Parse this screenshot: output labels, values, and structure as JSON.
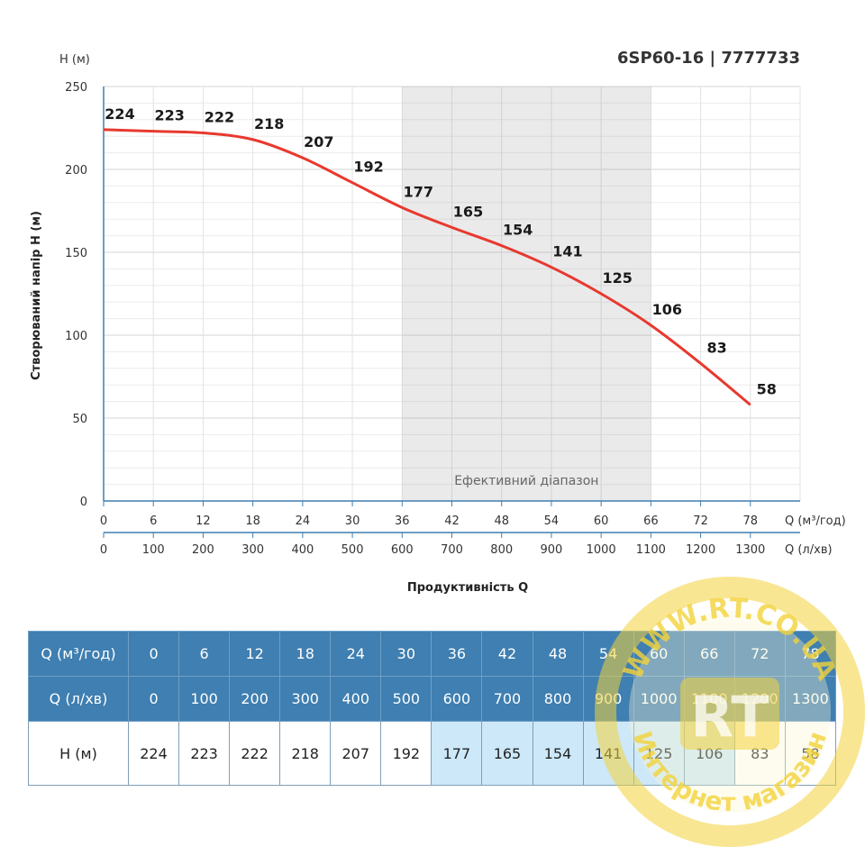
{
  "chart_data": {
    "type": "line",
    "title": "6SP60-16 | 7777733",
    "y_unit_label": "H (м)",
    "ylabel": "Створюваний напір H (м)",
    "xlabel": "Продуктивність Q",
    "x_unit_label": "Q (м³/год)",
    "x2_unit_label": "Q (л/хв)",
    "ylim": [
      0,
      250
    ],
    "yticks": [
      "0",
      "50",
      "100",
      "150",
      "200",
      "250"
    ],
    "x": [
      0,
      6,
      12,
      18,
      24,
      30,
      36,
      42,
      48,
      54,
      60,
      66,
      72,
      78
    ],
    "x_ticks": [
      "0",
      "6",
      "12",
      "18",
      "24",
      "30",
      "36",
      "42",
      "48",
      "54",
      "60",
      "66",
      "72",
      "78"
    ],
    "x2_ticks": [
      "0",
      "100",
      "200",
      "300",
      "400",
      "500",
      "600",
      "700",
      "800",
      "900",
      "1000",
      "1100",
      "1200",
      "1300"
    ],
    "xlim": [
      0,
      84
    ],
    "series": [
      {
        "values": [
          224,
          223,
          222,
          218,
          207,
          192,
          177,
          165,
          154,
          141,
          125,
          106,
          83,
          58
        ],
        "labels": [
          "224",
          "223",
          "222",
          "218",
          "207",
          "192",
          "177",
          "165",
          "154",
          "141",
          "125",
          "106",
          "83",
          "58"
        ],
        "color": "#e8392f"
      }
    ],
    "efficient_range": {
      "from": 36,
      "to": 66,
      "label": "Ефективний діапазон"
    },
    "grid": true
  },
  "table": {
    "rows": [
      {
        "header": "Q (м³/год)",
        "cells": [
          "0",
          "6",
          "12",
          "18",
          "24",
          "30",
          "36",
          "42",
          "48",
          "54",
          "60",
          "66",
          "72",
          "78"
        ]
      },
      {
        "header": "Q (л/хв)",
        "cells": [
          "0",
          "100",
          "200",
          "300",
          "400",
          "500",
          "600",
          "700",
          "800",
          "900",
          "1000",
          "1100",
          "1200",
          "1300"
        ]
      },
      {
        "header": "H (м)",
        "cells": [
          "224",
          "223",
          "222",
          "218",
          "207",
          "192",
          "177",
          "165",
          "154",
          "141",
          "125",
          "106",
          "83",
          "58"
        ]
      }
    ]
  },
  "watermark": {
    "url_text": "WWW.RT.CO.UA",
    "logo_text": "RT",
    "shop_text": "Интернет магазин",
    "ring_color": "#f2d23a"
  }
}
